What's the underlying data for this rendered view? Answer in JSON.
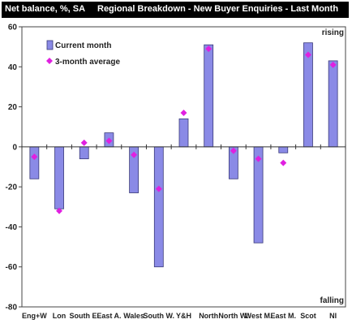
{
  "chart_data": {
    "type": "bar",
    "title": "Regional Breakdown - New Buyer Enquiries - Last Month",
    "ylabel": "Net balance, %, SA",
    "ylim": [
      -80,
      60
    ],
    "yticks": [
      -80,
      -60,
      -40,
      -20,
      0,
      20,
      40,
      60
    ],
    "categories": [
      "Eng+W",
      "Lon",
      "South E.",
      "East A.",
      "Wales",
      "South W.",
      "Y&H",
      "North",
      "North W.",
      "West M.",
      "East M.",
      "Scot",
      "NI"
    ],
    "series": [
      {
        "name": "Current month",
        "kind": "bar",
        "color": "#8a8ae6",
        "values": [
          -16,
          -31,
          -6,
          7,
          -23,
          -60,
          14,
          51,
          -16,
          -48,
          -3,
          52,
          43
        ]
      },
      {
        "name": "3-month average",
        "kind": "marker",
        "color": "#e020e0",
        "values": [
          -5,
          -32,
          2,
          3,
          -4,
          -21,
          17,
          49,
          -2,
          -6,
          -8,
          46,
          41
        ]
      }
    ],
    "annotations": {
      "top": "rising",
      "bottom": "falling"
    },
    "legend": "top-left",
    "grid": false
  }
}
